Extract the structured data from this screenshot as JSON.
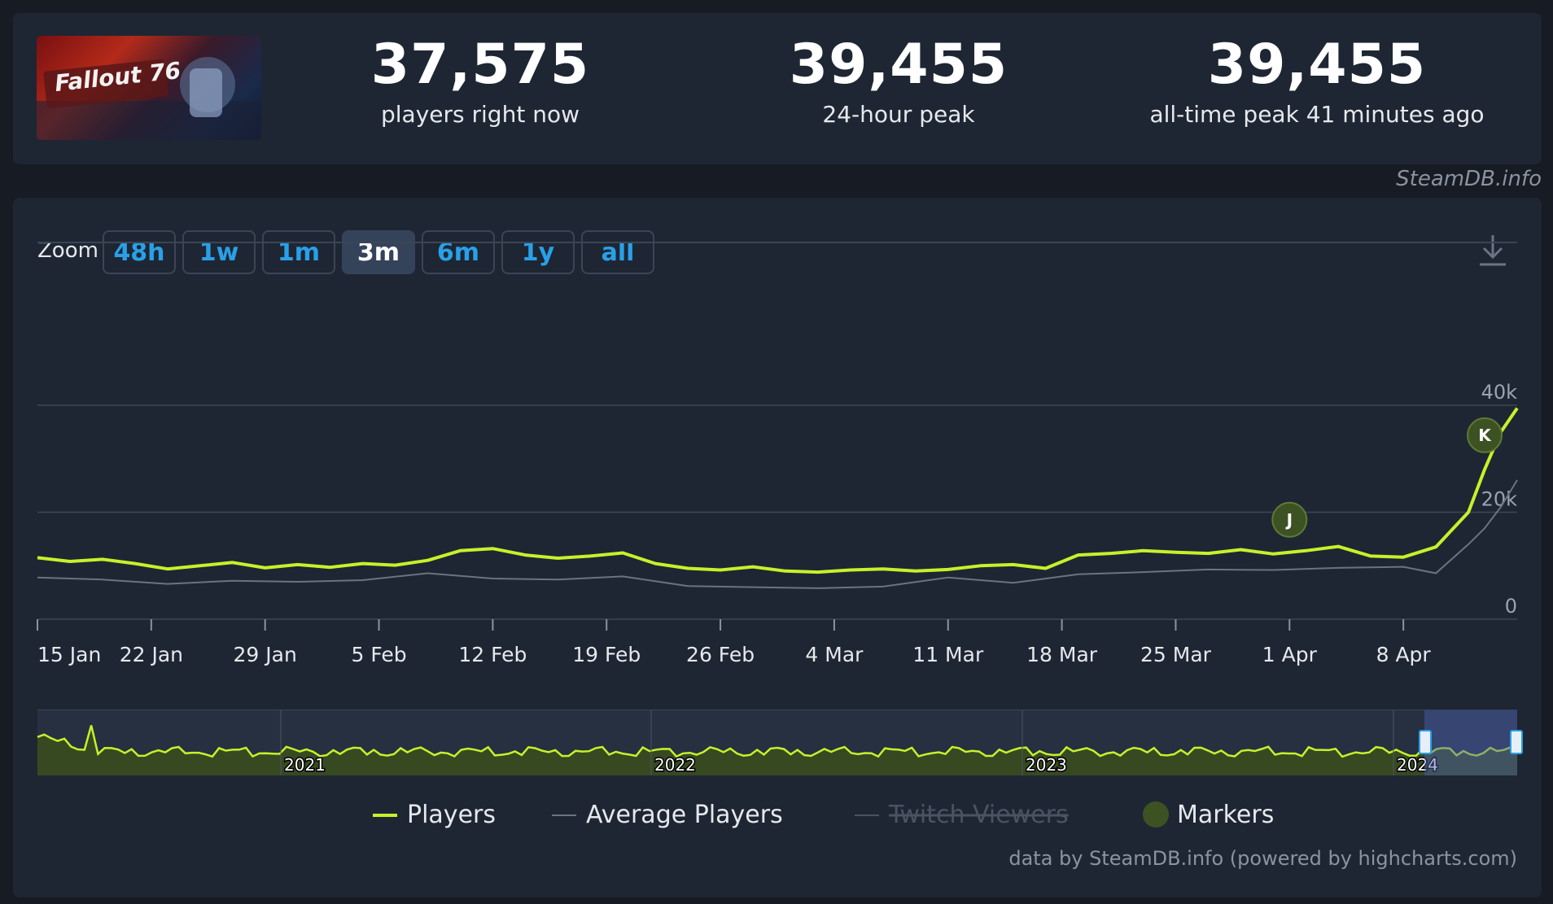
{
  "stats": [
    {
      "value": "37,575",
      "label": "players right now"
    },
    {
      "value": "39,455",
      "label": "24-hour peak"
    },
    {
      "value": "39,455",
      "label": "all-time peak 41 minutes ago"
    }
  ],
  "game_image_text": "Fallout 76",
  "attribution": "SteamDB.info",
  "zoom": {
    "label": "Zoom",
    "buttons": [
      "48h",
      "1w",
      "1m",
      "3m",
      "6m",
      "1y",
      "all"
    ],
    "active": "3m"
  },
  "credit": "data by SteamDB.info (powered by highcharts.com)",
  "colors": {
    "players": "#c6f12a",
    "average": "#6b7280",
    "twitch": "#4a5361",
    "marker": "#3d5223",
    "accent": "#29a0e8"
  },
  "chart_data": {
    "type": "line",
    "x_ticks": [
      "15 Jan",
      "22 Jan",
      "29 Jan",
      "5 Feb",
      "12 Feb",
      "19 Feb",
      "26 Feb",
      "4 Mar",
      "11 Mar",
      "18 Mar",
      "25 Mar",
      "1 Apr",
      "8 Apr"
    ],
    "y_ticks": [
      "0",
      "20k",
      "40k"
    ],
    "ylim": [
      0,
      40000
    ],
    "x_range_days": [
      0,
      91
    ],
    "series": [
      {
        "name": "Players",
        "x": [
          0,
          2,
          4,
          6,
          8,
          10,
          12,
          14,
          16,
          18,
          20,
          22,
          24,
          26,
          28,
          30,
          32,
          34,
          36,
          38,
          40,
          42,
          44,
          46,
          48,
          50,
          52,
          54,
          56,
          58,
          60,
          62,
          64,
          66,
          68,
          70,
          72,
          74,
          76,
          78,
          80,
          82,
          84,
          86,
          88,
          89,
          90,
          91
        ],
        "values": [
          11500,
          10800,
          11200,
          10400,
          9400,
          10000,
          10600,
          9600,
          10200,
          9700,
          10400,
          10100,
          11000,
          12800,
          13200,
          12000,
          11400,
          11800,
          12400,
          10400,
          9500,
          9200,
          9800,
          9000,
          8800,
          9200,
          9400,
          9000,
          9300,
          10000,
          10200,
          9500,
          12000,
          12300,
          12800,
          12500,
          12300,
          13000,
          12200,
          12800,
          13600,
          11800,
          11600,
          13500,
          20000,
          28000,
          35000,
          39455
        ]
      },
      {
        "name": "Average Players",
        "x": [
          0,
          4,
          8,
          12,
          16,
          20,
          24,
          28,
          32,
          36,
          40,
          44,
          48,
          52,
          56,
          60,
          64,
          68,
          72,
          76,
          80,
          84,
          86,
          88,
          89,
          90,
          91
        ],
        "values": [
          7800,
          7400,
          6600,
          7200,
          7000,
          7300,
          8600,
          7600,
          7400,
          8000,
          6200,
          6000,
          5800,
          6100,
          7800,
          6800,
          8400,
          8800,
          9300,
          9200,
          9600,
          9800,
          8600,
          14000,
          17000,
          21000,
          26000
        ]
      },
      {
        "name": "Twitch Viewers",
        "x": [],
        "values": []
      }
    ],
    "markers": [
      {
        "label": "J",
        "day": 77
      },
      {
        "label": "K",
        "day": 89
      }
    ],
    "navigator": {
      "year_labels": [
        "2021",
        "2022",
        "2023",
        "2024"
      ]
    },
    "legend": [
      {
        "label": "Players",
        "color": "#c6f12a",
        "disabled": false
      },
      {
        "label": "Average Players",
        "color": "#6b7280",
        "disabled": false
      },
      {
        "label": "Twitch Viewers",
        "color": "#4a5361",
        "disabled": true
      },
      {
        "label": "Markers",
        "color": "#3d5223",
        "disabled": false
      }
    ],
    "legend_position": "bottom"
  }
}
